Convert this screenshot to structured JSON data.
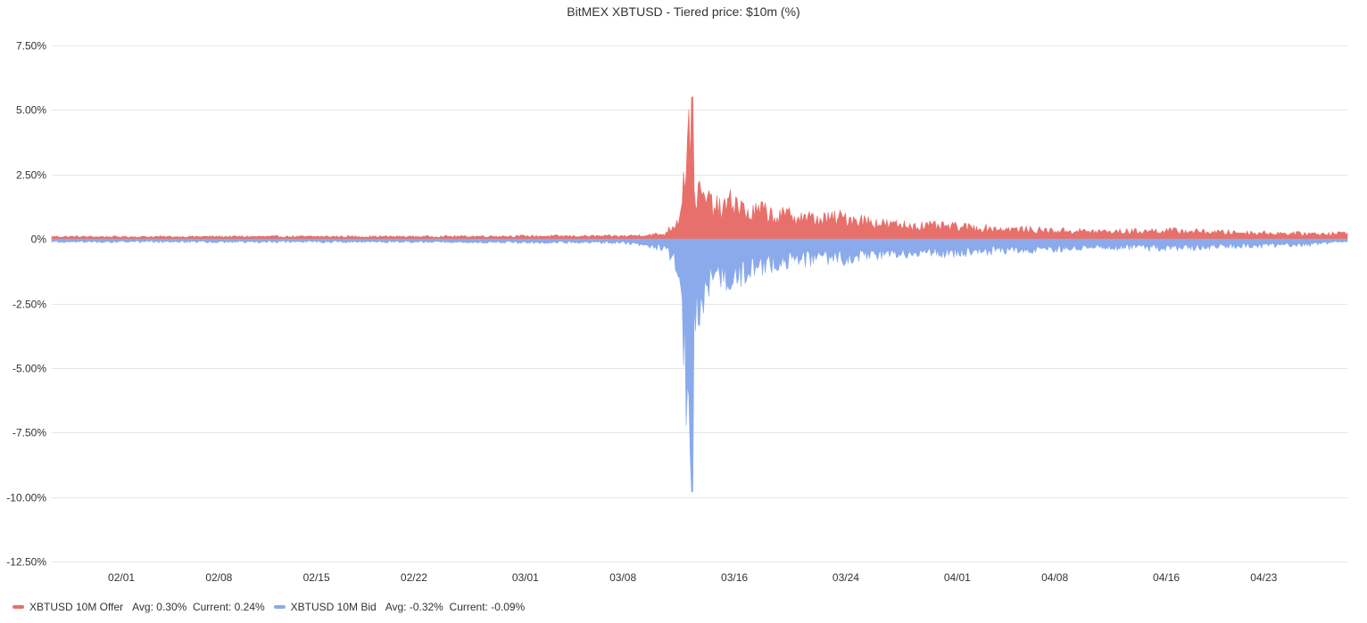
{
  "chart_data": {
    "type": "area",
    "title": "BitMEX XBTUSD - Tiered price: $10m (%)",
    "ylim": [
      -12.5,
      7.5
    ],
    "yticks": [
      7.5,
      5.0,
      2.5,
      0,
      -2.5,
      -5.0,
      -7.5,
      -10.0,
      -12.5
    ],
    "ytick_labels": [
      "7.50%",
      "5.00%",
      "2.50%",
      "0%",
      "-2.50%",
      "-5.00%",
      "-7.50%",
      "-10.00%",
      "-12.50%"
    ],
    "xlim": [
      "2020-01-27",
      "2020-04-29"
    ],
    "xticks": [
      "2020-02-01",
      "2020-02-08",
      "2020-02-15",
      "2020-02-22",
      "2020-03-01",
      "2020-03-08",
      "2020-03-16",
      "2020-03-24",
      "2020-04-01",
      "2020-04-08",
      "2020-04-16",
      "2020-04-23"
    ],
    "xtick_labels": [
      "02/01",
      "02/08",
      "02/15",
      "02/22",
      "03/01",
      "03/08",
      "03/16",
      "03/24",
      "04/01",
      "04/08",
      "04/16",
      "04/23"
    ],
    "grid": true,
    "legend_position": "bottom-left",
    "series": [
      {
        "name": "XBTUSD 10M Offer",
        "legend_stats": "Avg: 0.30%  Current: 0.24%",
        "color": "#e8706b",
        "x": [
          "2020-01-27",
          "2020-02-01",
          "2020-02-08",
          "2020-02-15",
          "2020-02-22",
          "2020-03-01",
          "2020-03-08",
          "2020-03-11",
          "2020-03-12",
          "2020-03-13",
          "2020-03-13",
          "2020-03-14",
          "2020-03-15",
          "2020-03-16",
          "2020-03-17",
          "2020-03-18",
          "2020-03-19",
          "2020-03-20",
          "2020-03-22",
          "2020-03-24",
          "2020-03-27",
          "2020-04-01",
          "2020-04-05",
          "2020-04-08",
          "2020-04-12",
          "2020-04-16",
          "2020-04-20",
          "2020-04-23",
          "2020-04-26",
          "2020-04-29"
        ],
        "y": [
          0.1,
          0.09,
          0.1,
          0.1,
          0.1,
          0.12,
          0.12,
          0.2,
          0.8,
          5.5,
          2.0,
          1.6,
          1.2,
          1.6,
          1.0,
          1.2,
          0.9,
          1.0,
          0.8,
          0.9,
          0.6,
          0.5,
          0.4,
          0.35,
          0.3,
          0.35,
          0.28,
          0.25,
          0.22,
          0.24
        ]
      },
      {
        "name": "XBTUSD 10M Bid",
        "legend_stats": "Avg: -0.32%  Current: -0.09%",
        "color": "#8aaaeb",
        "x": [
          "2020-01-27",
          "2020-02-01",
          "2020-02-08",
          "2020-02-15",
          "2020-02-22",
          "2020-03-01",
          "2020-03-08",
          "2020-03-11",
          "2020-03-12",
          "2020-03-13",
          "2020-03-13",
          "2020-03-14",
          "2020-03-15",
          "2020-03-16",
          "2020-03-17",
          "2020-03-18",
          "2020-03-19",
          "2020-03-20",
          "2020-03-22",
          "2020-03-24",
          "2020-03-27",
          "2020-04-01",
          "2020-04-05",
          "2020-04-08",
          "2020-04-12",
          "2020-04-16",
          "2020-04-20",
          "2020-04-23",
          "2020-04-26",
          "2020-04-29"
        ],
        "y": [
          -0.12,
          -0.12,
          -0.12,
          -0.12,
          -0.12,
          -0.14,
          -0.15,
          -0.4,
          -1.2,
          -9.8,
          -3.5,
          -2.0,
          -1.6,
          -1.6,
          -1.3,
          -1.2,
          -1.0,
          -0.9,
          -0.8,
          -0.8,
          -0.6,
          -0.55,
          -0.45,
          -0.4,
          -0.35,
          -0.4,
          -0.3,
          -0.28,
          -0.25,
          -0.09
        ]
      }
    ]
  }
}
